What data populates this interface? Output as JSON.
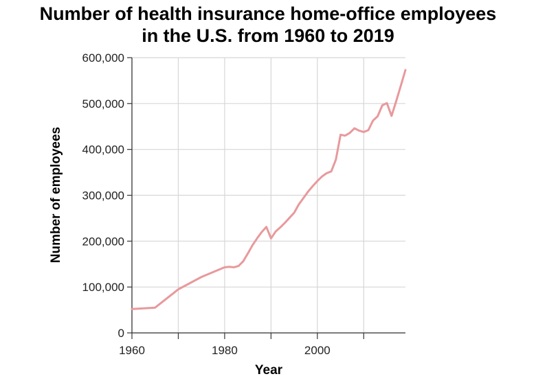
{
  "chart_data": {
    "type": "line",
    "title_lines": [
      "Number of health insurance home-office employees",
      "in the U.S. from 1960 to 2019"
    ],
    "xlabel": "Year",
    "ylabel": "Number of employees",
    "xlim": [
      1960,
      2019
    ],
    "ylim": [
      0,
      600000
    ],
    "x_ticks": [
      1960,
      1970,
      1980,
      1990,
      2000,
      2010
    ],
    "x_tick_labels": [
      "1960",
      "",
      "1980",
      "",
      "2000",
      ""
    ],
    "y_ticks": [
      0,
      100000,
      200000,
      300000,
      400000,
      500000,
      600000
    ],
    "y_tick_labels": [
      "0",
      "100,000",
      "200,000",
      "300,000",
      "400,000",
      "500,000",
      "600,000"
    ],
    "grid": true,
    "line_color": "#e8999c",
    "series": [
      {
        "x": [
          1960,
          1965,
          1970,
          1975,
          1980,
          1981,
          1982,
          1983,
          1984,
          1985,
          1986,
          1987,
          1988,
          1989,
          1990,
          1991,
          1992,
          1993,
          1994,
          1995,
          1996,
          1997,
          1998,
          1999,
          2000,
          2001,
          2002,
          2003,
          2004,
          2005,
          2006,
          2007,
          2008,
          2009,
          2010,
          2011,
          2012,
          2013,
          2014,
          2015,
          2016,
          2017,
          2018,
          2019
        ],
        "y": [
          52000,
          55000,
          95000,
          122000,
          143000,
          144000,
          143000,
          146000,
          156000,
          173000,
          191000,
          206000,
          220000,
          231000,
          206000,
          221000,
          230000,
          240000,
          251000,
          262000,
          280000,
          294000,
          308000,
          320000,
          331000,
          341000,
          348000,
          352000,
          378000,
          432000,
          430000,
          436000,
          446000,
          441000,
          438000,
          442000,
          463000,
          472000,
          496000,
          501000,
          473000,
          505000,
          539000,
          573000
        ]
      }
    ]
  }
}
